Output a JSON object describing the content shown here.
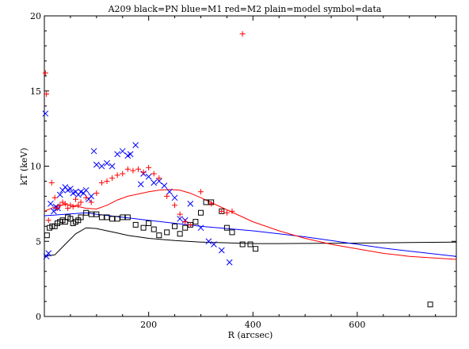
{
  "chart_data": {
    "type": "scatter",
    "title": "A209   black=PN   blue=M1   red=M2   plain=model   symbol=data",
    "xlabel": "R (arcsec)",
    "ylabel": "kT (keV)",
    "xlim": [
      0,
      790
    ],
    "ylim": [
      0,
      20
    ],
    "x_ticks": [
      200,
      400,
      600
    ],
    "y_ticks": [
      0,
      5,
      10,
      15,
      20
    ],
    "grid": false,
    "colors": {
      "PN": "#000000",
      "M1": "#0000ff",
      "M2": "#ff0000"
    },
    "series": [
      {
        "kind": "data",
        "instrument": "PN",
        "marker": "square",
        "x": [
          5,
          10,
          15,
          20,
          25,
          30,
          35,
          40,
          45,
          50,
          55,
          60,
          65,
          70,
          80,
          90,
          100,
          110,
          120,
          130,
          140,
          150,
          160,
          175,
          190,
          200,
          210,
          220,
          235,
          250,
          260,
          270,
          280,
          290,
          300,
          310,
          320,
          340,
          350,
          360,
          380,
          395,
          405,
          740
        ],
        "y": [
          5.4,
          5.9,
          6.0,
          6.0,
          6.2,
          6.3,
          6.4,
          6.3,
          6.6,
          6.5,
          6.2,
          6.3,
          6.4,
          6.6,
          6.9,
          6.8,
          6.8,
          6.6,
          6.6,
          6.5,
          6.5,
          6.6,
          6.6,
          6.1,
          5.9,
          6.2,
          5.8,
          5.4,
          5.6,
          6.0,
          5.5,
          5.9,
          6.1,
          6.3,
          6.9,
          7.6,
          7.6,
          7.0,
          5.9,
          5.6,
          4.8,
          4.8,
          4.5,
          0.8
        ]
      },
      {
        "kind": "data",
        "instrument": "M1",
        "marker": "x",
        "x": [
          2,
          4,
          8,
          12,
          18,
          22,
          26,
          30,
          35,
          40,
          45,
          50,
          55,
          60,
          65,
          70,
          75,
          80,
          85,
          90,
          95,
          100,
          110,
          120,
          130,
          140,
          150,
          160,
          165,
          175,
          185,
          190,
          200,
          210,
          220,
          230,
          240,
          250,
          260,
          270,
          280,
          300,
          315,
          325,
          340,
          355
        ],
        "y": [
          13.5,
          4.0,
          4.2,
          7.5,
          7.0,
          7.3,
          7.2,
          8.1,
          8.4,
          8.6,
          8.4,
          8.5,
          8.2,
          8.3,
          8.1,
          8.3,
          8.2,
          8.4,
          7.8,
          8.0,
          11.0,
          10.1,
          10.0,
          10.2,
          10.0,
          10.8,
          11.0,
          10.7,
          10.8,
          11.4,
          8.8,
          9.5,
          9.3,
          8.9,
          9.0,
          8.7,
          8.3,
          7.9,
          6.5,
          6.4,
          7.5,
          5.9,
          5.0,
          4.8,
          4.4,
          3.6
        ]
      },
      {
        "kind": "data",
        "instrument": "M2",
        "marker": "plus",
        "x": [
          2,
          4,
          8,
          14,
          20,
          25,
          30,
          35,
          40,
          45,
          50,
          55,
          60,
          65,
          70,
          80,
          90,
          100,
          110,
          120,
          130,
          140,
          150,
          160,
          170,
          180,
          190,
          200,
          210,
          220,
          235,
          250,
          260,
          270,
          280,
          300,
          320,
          340,
          350,
          360,
          380
        ],
        "y": [
          16.2,
          14.8,
          6.4,
          8.9,
          7.9,
          7.2,
          7.4,
          7.6,
          7.5,
          7.2,
          7.4,
          7.3,
          7.8,
          7.4,
          7.6,
          7.9,
          7.6,
          8.2,
          8.9,
          9.0,
          9.2,
          9.4,
          9.5,
          9.8,
          9.7,
          9.8,
          9.6,
          9.9,
          9.5,
          9.2,
          8.0,
          7.4,
          6.8,
          6.3,
          6.1,
          8.3,
          7.5,
          7.0,
          6.9,
          7.0,
          18.8
        ]
      },
      {
        "kind": "model",
        "instrument": "PN",
        "x": [
          0,
          20,
          40,
          60,
          80,
          100,
          120,
          140,
          160,
          180,
          200,
          250,
          300,
          350,
          400,
          450,
          500,
          600,
          700,
          790
        ],
        "y": [
          4.0,
          4.1,
          4.8,
          5.5,
          5.9,
          5.85,
          5.7,
          5.55,
          5.4,
          5.3,
          5.2,
          5.05,
          4.95,
          4.9,
          4.85,
          4.85,
          4.86,
          4.88,
          4.92,
          4.95
        ]
      },
      {
        "kind": "model",
        "instrument": "M1",
        "x": [
          0,
          20,
          40,
          60,
          80,
          100,
          150,
          200,
          250,
          300,
          350,
          400,
          450,
          500,
          550,
          600,
          650,
          700,
          790
        ],
        "y": [
          6.7,
          6.75,
          6.8,
          6.85,
          6.9,
          6.8,
          6.6,
          6.4,
          6.2,
          6.0,
          5.85,
          5.7,
          5.5,
          5.3,
          5.05,
          4.8,
          4.55,
          4.35,
          4.0
        ]
      },
      {
        "kind": "model",
        "instrument": "M2",
        "x": [
          0,
          20,
          40,
          60,
          80,
          100,
          120,
          140,
          160,
          180,
          200,
          220,
          240,
          260,
          280,
          300,
          350,
          400,
          450,
          500,
          550,
          600,
          650,
          700,
          790
        ],
        "y": [
          7.0,
          7.3,
          7.45,
          7.35,
          7.2,
          7.15,
          7.4,
          7.75,
          8.0,
          8.15,
          8.3,
          8.4,
          8.45,
          8.4,
          8.2,
          7.9,
          7.1,
          6.3,
          5.7,
          5.2,
          4.8,
          4.5,
          4.2,
          4.0,
          3.8
        ]
      }
    ]
  }
}
